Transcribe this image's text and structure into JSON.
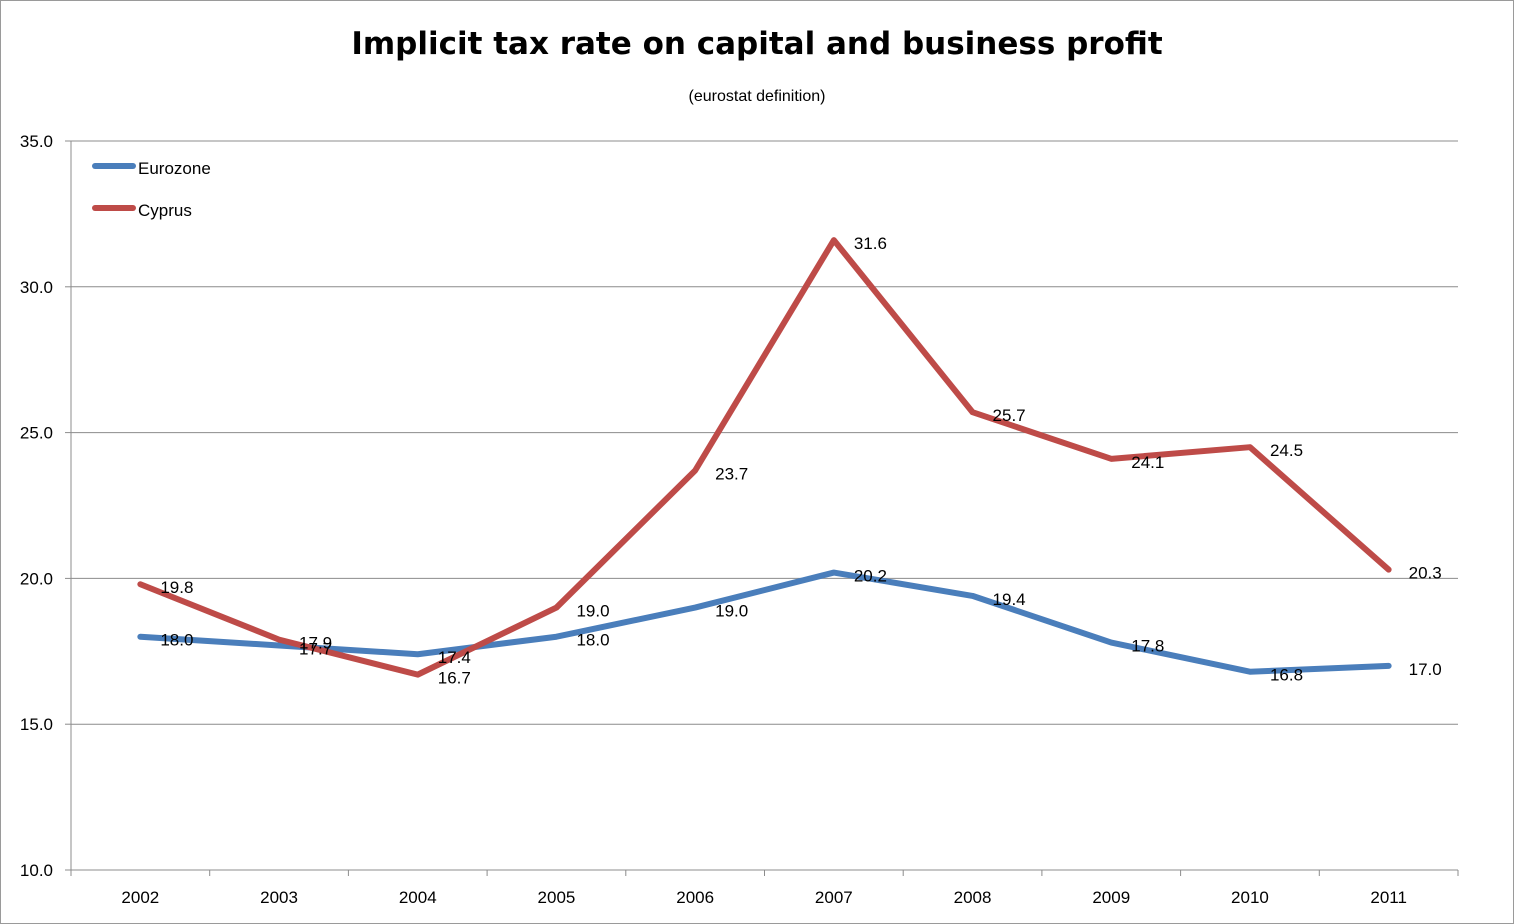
{
  "chart_data": {
    "type": "line",
    "title": "Implicit tax rate on capital and business profit",
    "subtitle": "(eurostat definition)",
    "xlabel": "",
    "ylabel": "",
    "categories": [
      "2002",
      "2003",
      "2004",
      "2005",
      "2006",
      "2007",
      "2008",
      "2009",
      "2010",
      "2011"
    ],
    "ylim": [
      10.0,
      35.0
    ],
    "yticks": [
      "10.0",
      "15.0",
      "20.0",
      "25.0",
      "30.0",
      "35.0"
    ],
    "grid": true,
    "legend_position": "top-left",
    "series": [
      {
        "name": "Eurozone",
        "color": "#4a7ebb",
        "values": [
          18.0,
          17.7,
          17.4,
          18.0,
          19.0,
          20.2,
          19.4,
          17.8,
          16.8,
          17.0
        ],
        "labels": [
          "18.0",
          "17.7",
          "17.4",
          "18.0",
          "19.0",
          "20.2",
          "19.4",
          "17.8",
          "16.8",
          "17.0"
        ]
      },
      {
        "name": "Cyprus",
        "color": "#be4b48",
        "values": [
          19.8,
          17.9,
          16.7,
          19.0,
          23.7,
          31.6,
          25.7,
          24.1,
          24.5,
          20.3
        ],
        "labels": [
          "19.8",
          "17.9",
          "16.7",
          "19.0",
          "23.7",
          "31.6",
          "25.7",
          "24.1",
          "24.5",
          "20.3"
        ]
      }
    ]
  }
}
